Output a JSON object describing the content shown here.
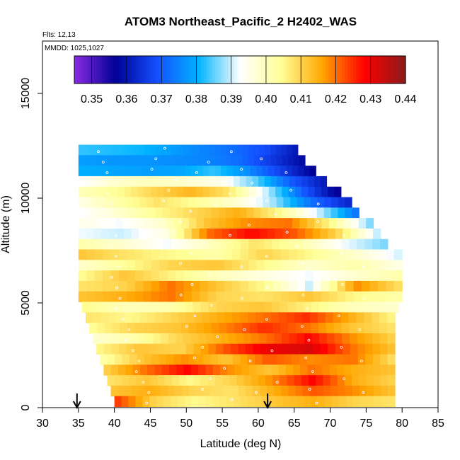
{
  "chart_data": {
    "type": "heatmap",
    "title": "ATOM3 Northeast_Pacific_2 H2402_WAS",
    "flights_label": "Flts: 12,13",
    "dates_label": "MMDD: 1025,1027",
    "xlabel": "Latitude (deg N)",
    "ylabel": "Altitude (m)",
    "xlim": [
      30,
      85
    ],
    "ylim": [
      0,
      17500
    ],
    "x_ticks": [
      "30",
      "35",
      "40",
      "45",
      "50",
      "55",
      "60",
      "65",
      "70",
      "75",
      "80",
      "85"
    ],
    "y_ticks": [
      "0",
      "5000",
      "10000",
      "15000"
    ],
    "colorbar": {
      "min": 0.345,
      "max": 0.44,
      "ticks": [
        "0.35",
        "0.36",
        "0.37",
        "0.38",
        "0.39",
        "0.40",
        "0.41",
        "0.42",
        "0.43",
        "0.44"
      ],
      "colors": [
        "#8a2be2",
        "#000096",
        "#1450ff",
        "#00b4ff",
        "#ffffff",
        "#ffff96",
        "#ffa500",
        "#ff0000",
        "#8b1a1a"
      ]
    },
    "arrows_latitude": [
      34.8,
      61.3
    ],
    "rows": [
      {
        "alt": 12300,
        "lat": [
          35,
          65.5
        ],
        "v": [
          0.383,
          0.382,
          0.381,
          0.378,
          0.375,
          0.372,
          0.368,
          0.36
        ]
      },
      {
        "alt": 11800,
        "lat": [
          35,
          66.5
        ],
        "v": [
          0.378,
          0.377,
          0.377,
          0.376,
          0.375,
          0.372,
          0.365,
          0.358
        ]
      },
      {
        "alt": 11300,
        "lat": [
          35,
          68
        ],
        "v": [
          0.38,
          0.379,
          0.378,
          0.379,
          0.383,
          0.376,
          0.366,
          0.356
        ]
      },
      {
        "alt": 10800,
        "lat": [
          35,
          69.5
        ],
        "v": [
          0.392,
          0.398,
          0.4,
          0.398,
          0.395,
          0.385,
          0.37,
          0.36
        ]
      },
      {
        "alt": 10300,
        "lat": [
          35,
          71.5
        ],
        "v": [
          0.4,
          0.404,
          0.41,
          0.414,
          0.408,
          0.39,
          0.37,
          0.355
        ]
      },
      {
        "alt": 9800,
        "lat": [
          35,
          73
        ],
        "v": [
          0.395,
          0.402,
          0.408,
          0.404,
          0.398,
          0.388,
          0.372,
          0.362
        ]
      },
      {
        "alt": 9300,
        "lat": [
          35,
          74
        ],
        "v": [
          0.392,
          0.398,
          0.405,
          0.41,
          0.415,
          0.405,
          0.39,
          0.372
        ]
      },
      {
        "alt": 8800,
        "lat": [
          35,
          76
        ],
        "v": [
          0.395,
          0.392,
          0.398,
          0.412,
          0.418,
          0.42,
          0.405,
          0.385
        ]
      },
      {
        "alt": 8300,
        "lat": [
          35,
          77
        ],
        "v": [
          0.392,
          0.39,
          0.395,
          0.42,
          0.428,
          0.422,
          0.41,
          0.388
        ]
      },
      {
        "alt": 7800,
        "lat": [
          35,
          78
        ],
        "v": [
          0.402,
          0.398,
          0.392,
          0.4,
          0.408,
          0.402,
          0.392,
          0.386
        ]
      },
      {
        "alt": 7300,
        "lat": [
          35,
          80
        ],
        "v": [
          0.412,
          0.408,
          0.405,
          0.402,
          0.41,
          0.405,
          0.398,
          0.39
        ]
      },
      {
        "alt": 6800,
        "lat": [
          35,
          80
        ],
        "v": [
          0.398,
          0.404,
          0.41,
          0.412,
          0.405,
          0.398,
          0.402,
          0.395
        ]
      },
      {
        "alt": 6300,
        "lat": [
          35,
          80
        ],
        "v": [
          0.404,
          0.412,
          0.406,
          0.4,
          0.396,
          0.392,
          0.398,
          0.402
        ]
      },
      {
        "alt": 5800,
        "lat": [
          35,
          80
        ],
        "v": [
          0.408,
          0.41,
          0.42,
          0.412,
          0.405,
          0.39,
          0.418,
          0.408
        ]
      },
      {
        "alt": 5300,
        "lat": [
          35,
          80
        ],
        "v": [
          0.412,
          0.415,
          0.42,
          0.41,
          0.408,
          0.412,
          0.405,
          0.402
        ]
      },
      {
        "alt": 4800,
        "lat": [
          35.5,
          79.5
        ],
        "v": [
          0.405,
          0.4,
          0.402,
          0.41,
          0.412,
          0.406,
          0.4,
          0.398
        ]
      },
      {
        "alt": 4300,
        "lat": [
          36,
          79
        ],
        "v": [
          0.408,
          0.405,
          0.41,
          0.415,
          0.42,
          0.425,
          0.415,
          0.405
        ]
      },
      {
        "alt": 3800,
        "lat": [
          36.5,
          79
        ],
        "v": [
          0.404,
          0.41,
          0.412,
          0.418,
          0.425,
          0.42,
          0.412,
          0.408
        ]
      },
      {
        "alt": 3300,
        "lat": [
          37,
          79
        ],
        "v": [
          0.398,
          0.402,
          0.41,
          0.415,
          0.42,
          0.428,
          0.418,
          0.41
        ]
      },
      {
        "alt": 2800,
        "lat": [
          37.5,
          79
        ],
        "v": [
          0.405,
          0.412,
          0.41,
          0.422,
          0.43,
          0.432,
          0.42,
          0.412
        ]
      },
      {
        "alt": 2300,
        "lat": [
          38,
          79
        ],
        "v": [
          0.402,
          0.412,
          0.418,
          0.412,
          0.422,
          0.418,
          0.42,
          0.408
        ]
      },
      {
        "alt": 1800,
        "lat": [
          38.5,
          79
        ],
        "v": [
          0.41,
          0.42,
          0.428,
          0.418,
          0.412,
          0.42,
          0.415,
          0.412
        ]
      },
      {
        "alt": 1300,
        "lat": [
          39,
          79
        ],
        "v": [
          0.408,
          0.412,
          0.405,
          0.41,
          0.418,
          0.428,
          0.415,
          0.41
        ]
      },
      {
        "alt": 800,
        "lat": [
          39.5,
          79
        ],
        "v": [
          0.412,
          0.415,
          0.41,
          0.408,
          0.415,
          0.422,
          0.418,
          0.412
        ]
      },
      {
        "alt": 300,
        "lat": [
          40,
          79
        ],
        "v": [
          0.425,
          0.41,
          0.405,
          0.408,
          0.412,
          0.415,
          0.41,
          0.408
        ]
      }
    ]
  }
}
